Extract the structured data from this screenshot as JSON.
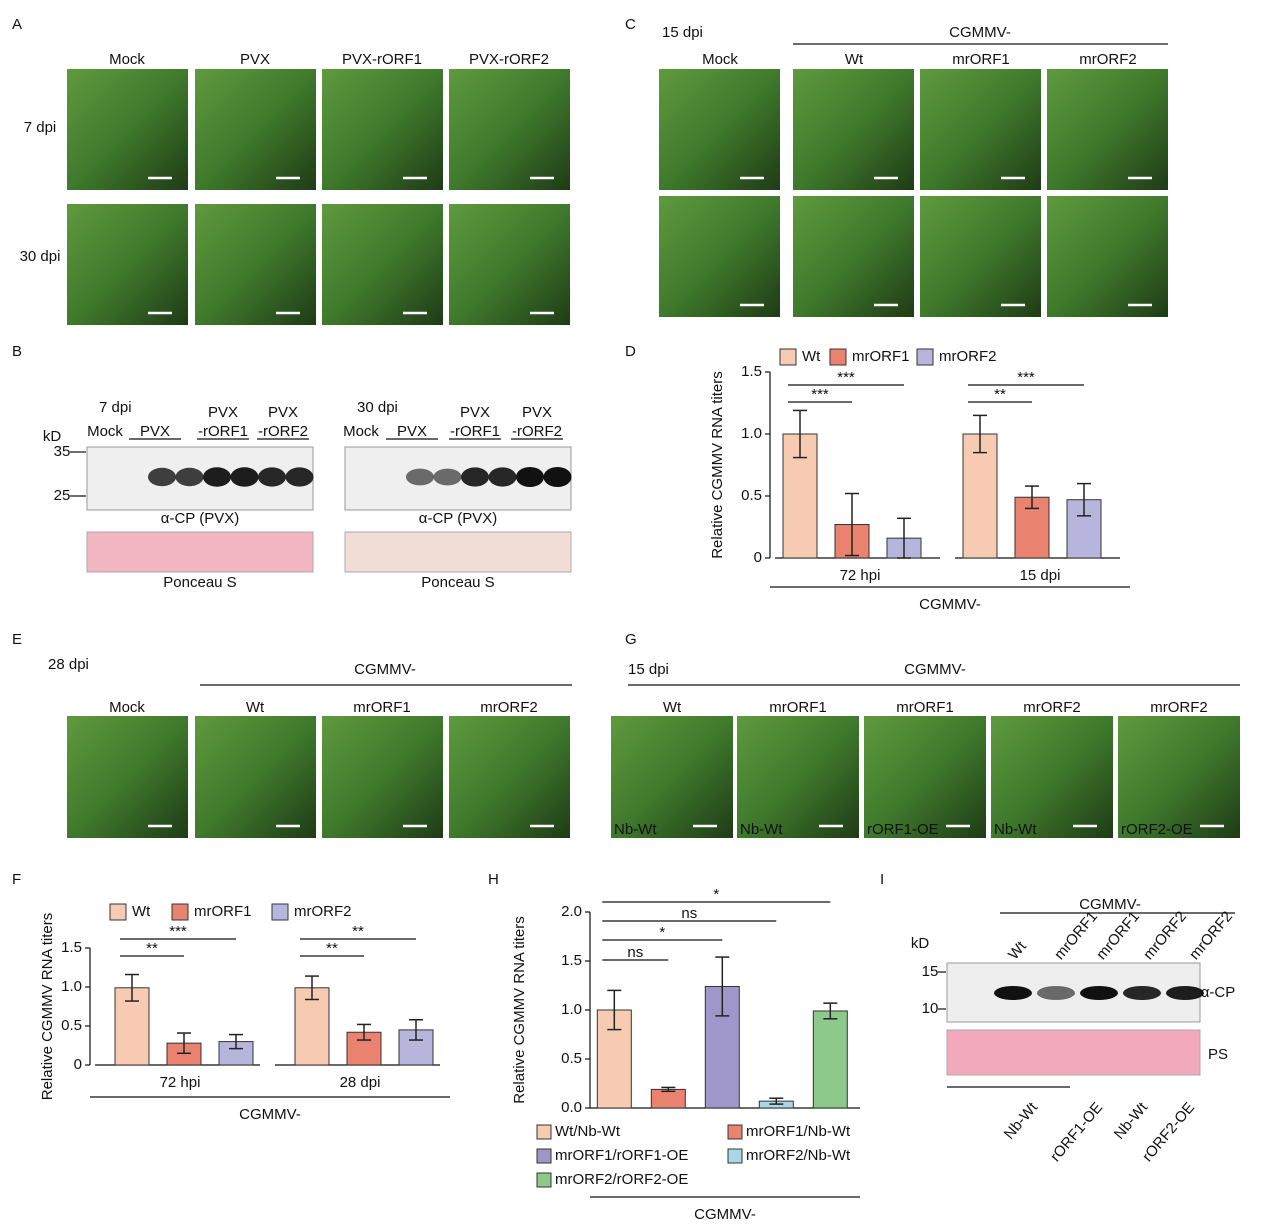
{
  "panel_labels": [
    "A",
    "B",
    "C",
    "D",
    "E",
    "F",
    "G",
    "H",
    "I"
  ],
  "panel_a": {
    "columns": [
      "Mock",
      "PVX",
      "PVX-rORF1",
      "PVX-rORF2"
    ],
    "rows": [
      "7 dpi",
      "30 dpi"
    ]
  },
  "panel_b": {
    "kd": "kD",
    "markers": [
      "35",
      "25"
    ],
    "left": {
      "time": "7 dpi",
      "lanes": [
        [
          "Mock"
        ],
        [
          "PVX"
        ],
        [
          "PVX",
          "-rORF1"
        ],
        [
          "PVX",
          "-rORF2"
        ]
      ]
    },
    "right": {
      "time": "30 dpi",
      "lanes": [
        [
          "Mock"
        ],
        [
          "PVX"
        ],
        [
          "PVX",
          "-rORF1"
        ],
        [
          "PVX",
          "-rORF2"
        ]
      ]
    },
    "antibody": "α-CP (PVX)",
    "stain": "Ponceau S"
  },
  "panel_c": {
    "time": "15 dpi",
    "group": "CGMMV-",
    "columns": [
      "Mock",
      "Wt",
      "mrORF1",
      "mrORF2"
    ]
  },
  "panel_e": {
    "time": "28 dpi",
    "group": "CGMMV-",
    "columns": [
      "Mock",
      "Wt",
      "mrORF1",
      "mrORF2"
    ]
  },
  "panel_g": {
    "time": "15 dpi",
    "group": "CGMMV-",
    "columns": [
      "Wt",
      "mrORF1",
      "mrORF1",
      "mrORF2",
      "mrORF2"
    ],
    "hosts": [
      "Nb-Wt",
      "Nb-Wt",
      "rORF1-OE",
      "Nb-Wt",
      "rORF2-OE"
    ]
  },
  "panel_i": {
    "group": "CGMMV-",
    "kd": "kD",
    "markers": [
      "15",
      "10"
    ],
    "lanes": [
      "Wt",
      "mrORF1",
      "mrORF1",
      "mrORF2",
      "mrORF2"
    ],
    "antibody": "α-CP",
    "stain": "PS",
    "hosts": [
      "Nb-Wt",
      "rORF1-OE",
      "Nb-Wt",
      "rORF2-OE"
    ]
  },
  "chart_data": [
    {
      "type": "bar",
      "ylabel": "Relative CGMMV RNA titers",
      "categories": [
        "72 hpi",
        "15 dpi"
      ],
      "series": [
        {
          "name": "Wt",
          "color": "#f7cbb2",
          "values": [
            1.0,
            1.0
          ],
          "errors": [
            0.19,
            0.15
          ]
        },
        {
          "name": "mrORF1",
          "color": "#e9836f",
          "values": [
            0.27,
            0.49
          ],
          "errors": [
            0.25,
            0.09
          ]
        },
        {
          "name": "mrORF2",
          "color": "#b8b5dd",
          "values": [
            0.16,
            0.47
          ],
          "errors": [
            0.16,
            0.13
          ]
        }
      ],
      "ylim": [
        0,
        1.5
      ],
      "yticks": [
        0,
        0.5,
        {
          "value": 1.0,
          "label": "1.0"
        },
        1.5
      ],
      "annotations": [
        "***",
        "***",
        "**",
        "***"
      ],
      "group_label": "CGMMV-"
    },
    {
      "type": "bar",
      "ylabel": "Relative CGMMV RNA titers",
      "categories": [
        "72 hpi",
        "28 dpi"
      ],
      "series": [
        {
          "name": "Wt",
          "color": "#f7cbb2",
          "values": [
            0.99,
            0.99
          ],
          "errors": [
            0.17,
            0.15
          ]
        },
        {
          "name": "mrORF1",
          "color": "#e9836f",
          "values": [
            0.28,
            0.42
          ],
          "errors": [
            0.13,
            0.1
          ]
        },
        {
          "name": "mrORF2",
          "color": "#b8b5dd",
          "values": [
            0.3,
            0.45
          ],
          "errors": [
            0.09,
            0.13
          ]
        }
      ],
      "ylim": [
        0,
        1.5
      ],
      "yticks": [
        0,
        0.5,
        {
          "value": 1.0,
          "label": "1.0"
        },
        1.5
      ],
      "annotations": [
        "**",
        "***",
        "**",
        "**"
      ],
      "group_label": "CGMMV-"
    },
    {
      "type": "bar",
      "ylabel": "Relative CGMMV RNA titers",
      "categories": [
        "Wt/Nb-Wt",
        "mrORF1/Nb-Wt",
        "mrORF1/rORF1-OE",
        "mrORF2/Nb-Wt",
        "mrORF2/rORF2-OE"
      ],
      "values": [
        1.0,
        0.19,
        1.24,
        0.07,
        0.99
      ],
      "errors": [
        0.2,
        0.02,
        0.3,
        0.03,
        0.08
      ],
      "colors": [
        "#f7cbb2",
        "#e9836f",
        "#9f97ca",
        "#a9d7e6",
        "#8dc98b"
      ],
      "ylim": [
        0,
        2.0
      ],
      "yticks": [
        {
          "value": 0,
          "label": "0.0"
        },
        0.5,
        {
          "value": 1.0,
          "label": "1.0"
        },
        1.5,
        {
          "value": 2.0,
          "label": "2.0"
        }
      ],
      "annotations": [
        "ns",
        "*",
        "ns",
        "*"
      ],
      "group_label": "CGMMV-"
    }
  ]
}
